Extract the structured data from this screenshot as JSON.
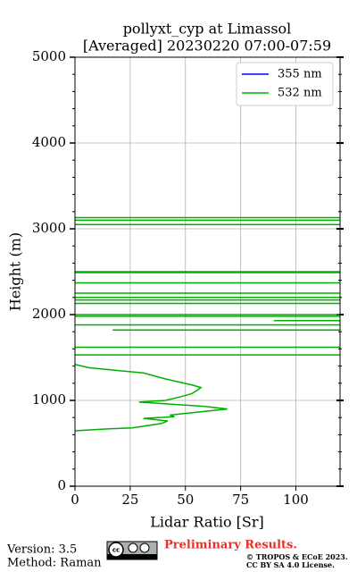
{
  "chart_data": {
    "type": "line",
    "title": [
      "pollyxt_cyp at Limassol",
      "[Averaged] 20230220 07:00-07:59"
    ],
    "xlabel": "Lidar Ratio [Sr]",
    "ylabel": "Height (m)",
    "xlim": [
      0,
      120
    ],
    "xticks": [
      0,
      25,
      50,
      75,
      100
    ],
    "ylim": [
      0,
      5000
    ],
    "yticks": [
      0,
      1000,
      2000,
      3000,
      4000,
      5000
    ],
    "yminorticks": [
      200,
      400,
      600,
      800,
      1200,
      1400,
      1600,
      1800,
      2200,
      2400,
      2600,
      2800,
      3200,
      3400,
      3600,
      3800,
      4200,
      4400,
      4600,
      4800
    ],
    "grid": true,
    "legend": "upper right",
    "y": [
      646,
      670,
      680,
      730,
      760,
      790,
      810,
      830,
      900,
      930,
      980,
      1000,
      1050,
      1080,
      1130,
      1150,
      1180,
      1250,
      1320,
      1380,
      1420,
      null,
      1530,
      1530,
      null,
      1620,
      1620,
      null,
      1820,
      1820,
      null,
      1880,
      1880,
      null,
      1930,
      1930,
      null,
      1980,
      1980,
      null,
      2000,
      2000,
      null,
      2130,
      2130,
      null,
      2170,
      2170,
      null,
      2200,
      2200,
      null,
      2250,
      2250,
      null,
      2370,
      2370,
      null,
      2490,
      2490,
      null,
      2500,
      2500,
      null,
      3050,
      3050,
      null,
      3100,
      3100,
      null,
      3130,
      3130
    ],
    "series": [
      {
        "name": "355 nm",
        "color": "#0000ff",
        "values": [
          null,
          null,
          null,
          null,
          null,
          null,
          null,
          null,
          null,
          null,
          null,
          null,
          null,
          null,
          null,
          null,
          null,
          null,
          null,
          null,
          null,
          null,
          null,
          null,
          null,
          null,
          null,
          null,
          null,
          null,
          null,
          null,
          null,
          null,
          null,
          null,
          null,
          null,
          null,
          null,
          null,
          null,
          null,
          null,
          null,
          null,
          null,
          null,
          null,
          null,
          null,
          null,
          null,
          null,
          null,
          null,
          null,
          null,
          null,
          null,
          null,
          null,
          null,
          null,
          null,
          null,
          null,
          null,
          null,
          null,
          null,
          null
        ]
      },
      {
        "name": "532 nm",
        "color": "#00b000",
        "values": [
          0,
          16.6,
          26,
          39,
          42,
          31,
          45,
          43,
          69,
          59,
          29,
          41,
          49,
          53,
          56,
          57,
          53,
          41,
          31,
          6.5,
          0,
          null,
          0,
          120,
          null,
          0,
          120,
          null,
          17,
          120,
          null,
          0,
          120,
          null,
          90,
          120,
          null,
          0,
          120,
          null,
          0,
          120,
          null,
          0,
          120,
          null,
          0,
          120,
          null,
          0,
          120,
          null,
          0,
          120,
          null,
          0,
          120,
          null,
          0,
          120,
          null,
          0,
          120,
          null,
          0,
          120,
          null,
          0,
          120,
          null,
          0,
          120
        ]
      }
    ]
  },
  "footer": {
    "version": "Version: 3.5",
    "method": "Method: Raman",
    "status": "Preliminary Results.",
    "copyright": "© TROPOS & ECoE 2023.",
    "license": "CC BY SA 4.0 License."
  }
}
